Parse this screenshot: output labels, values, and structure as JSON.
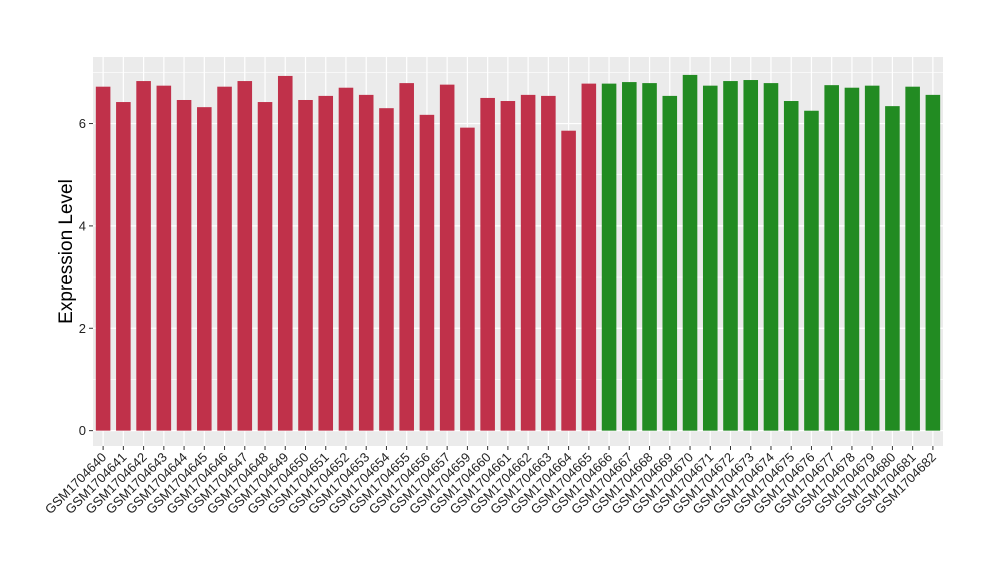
{
  "chart_data": {
    "type": "bar",
    "title": "",
    "xlabel": "",
    "ylabel": "Expression Level",
    "ylim": [
      -0.3,
      7.3
    ],
    "yticks": [
      0,
      2,
      4,
      6
    ],
    "grid": true,
    "legend": "none",
    "panel_background": "#ebebeb",
    "grid_color": "#ffffff",
    "categories": [
      "GSM1704640",
      "GSM1704641",
      "GSM1704642",
      "GSM1704643",
      "GSM1704644",
      "GSM1704645",
      "GSM1704646",
      "GSM1704647",
      "GSM1704648",
      "GSM1704649",
      "GSM1704650",
      "GSM1704651",
      "GSM1704652",
      "GSM1704653",
      "GSM1704654",
      "GSM1704655",
      "GSM1704656",
      "GSM1704657",
      "GSM1704659",
      "GSM1704660",
      "GSM1704661",
      "GSM1704662",
      "GSM1704663",
      "GSM1704664",
      "GSM1704665",
      "GSM1704666",
      "GSM1704667",
      "GSM1704668",
      "GSM1704669",
      "GSM1704670",
      "GSM1704671",
      "GSM1704672",
      "GSM1704673",
      "GSM1704674",
      "GSM1704675",
      "GSM1704676",
      "GSM1704677",
      "GSM1704678",
      "GSM1704679",
      "GSM1704680",
      "GSM1704681",
      "GSM1704682"
    ],
    "values": [
      6.72,
      6.42,
      6.83,
      6.74,
      6.46,
      6.32,
      6.72,
      6.83,
      6.42,
      6.93,
      6.46,
      6.54,
      6.7,
      6.56,
      6.3,
      6.79,
      6.17,
      6.76,
      5.92,
      6.5,
      6.44,
      6.56,
      6.54,
      5.86,
      6.78,
      6.78,
      6.81,
      6.79,
      6.54,
      6.95,
      6.74,
      6.83,
      6.85,
      6.79,
      6.44,
      6.25,
      6.75,
      6.7,
      6.74,
      6.34,
      6.72,
      6.56
    ],
    "colors": [
      "#c0314a",
      "#c0314a",
      "#c0314a",
      "#c0314a",
      "#c0314a",
      "#c0314a",
      "#c0314a",
      "#c0314a",
      "#c0314a",
      "#c0314a",
      "#c0314a",
      "#c0314a",
      "#c0314a",
      "#c0314a",
      "#c0314a",
      "#c0314a",
      "#c0314a",
      "#c0314a",
      "#c0314a",
      "#c0314a",
      "#c0314a",
      "#c0314a",
      "#c0314a",
      "#c0314a",
      "#c0314a",
      "#228b22",
      "#228b22",
      "#228b22",
      "#228b22",
      "#228b22",
      "#228b22",
      "#228b22",
      "#228b22",
      "#228b22",
      "#228b22",
      "#228b22",
      "#228b22",
      "#228b22",
      "#228b22",
      "#228b22",
      "#228b22",
      "#228b22"
    ]
  }
}
